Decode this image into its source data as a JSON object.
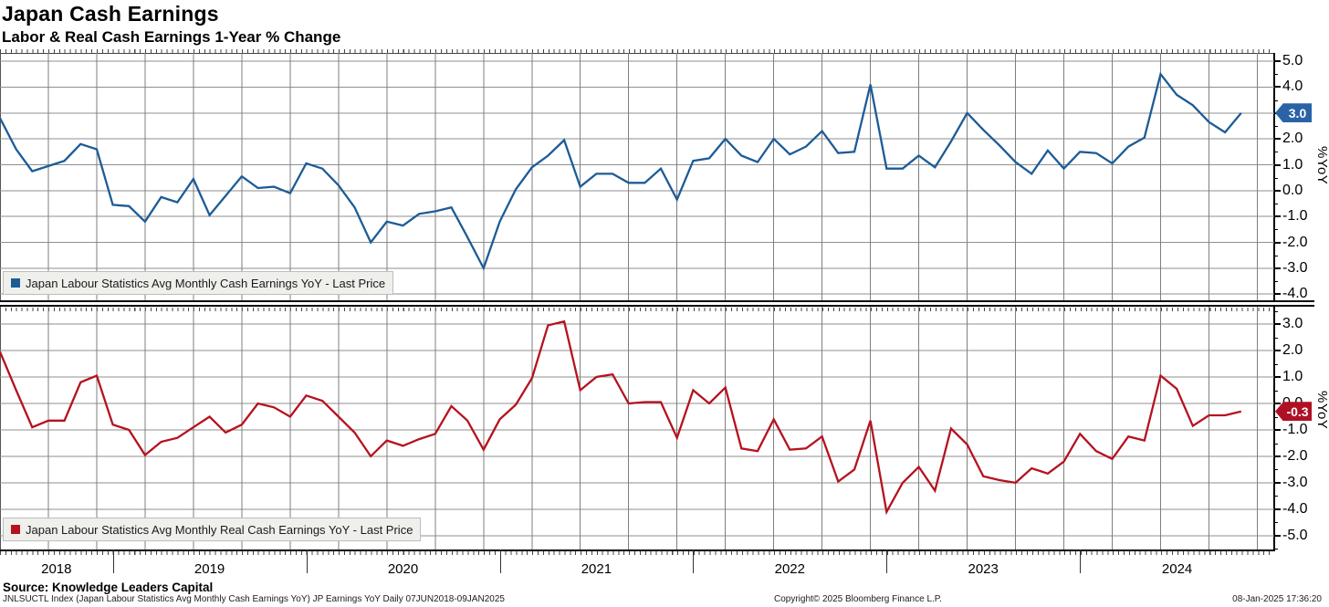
{
  "header": {
    "title": "Japan Cash Earnings",
    "subtitle": "Labor & Real Cash Earnings 1-Year % Change"
  },
  "chart_data": {
    "type": "line",
    "grid": true,
    "legend_position": "bottom-left-inside",
    "x_months": [
      "2018-06",
      "2018-07",
      "2018-08",
      "2018-09",
      "2018-10",
      "2018-11",
      "2018-12",
      "2019-01",
      "2019-02",
      "2019-03",
      "2019-04",
      "2019-05",
      "2019-06",
      "2019-07",
      "2019-08",
      "2019-09",
      "2019-10",
      "2019-11",
      "2019-12",
      "2020-01",
      "2020-02",
      "2020-03",
      "2020-04",
      "2020-05",
      "2020-06",
      "2020-07",
      "2020-08",
      "2020-09",
      "2020-10",
      "2020-11",
      "2020-12",
      "2021-01",
      "2021-02",
      "2021-03",
      "2021-04",
      "2021-05",
      "2021-06",
      "2021-07",
      "2021-08",
      "2021-09",
      "2021-10",
      "2021-11",
      "2021-12",
      "2022-01",
      "2022-02",
      "2022-03",
      "2022-04",
      "2022-05",
      "2022-06",
      "2022-07",
      "2022-08",
      "2022-09",
      "2022-10",
      "2022-11",
      "2022-12",
      "2023-01",
      "2023-02",
      "2023-03",
      "2023-04",
      "2023-05",
      "2023-06",
      "2023-07",
      "2023-08",
      "2023-09",
      "2023-10",
      "2023-11",
      "2023-12",
      "2024-01",
      "2024-02",
      "2024-03",
      "2024-04",
      "2024-05",
      "2024-06",
      "2024-07",
      "2024-08",
      "2024-09",
      "2024-10",
      "2024-11"
    ],
    "x_year_labels": [
      "2018",
      "2019",
      "2020",
      "2021",
      "2022",
      "2023",
      "2024"
    ],
    "x_range_note": "07JUN2018-09JAN2025",
    "panels": [
      {
        "name": "nominal-cash-earnings",
        "legend": "Japan Labour Statistics Avg Monthly Cash Earnings YoY - Last Price",
        "ylabel": "%YoY",
        "line_color": "#1d5b96",
        "badge_color": "#2a63a5",
        "last_label": "3.0",
        "yticks": [
          5.0,
          4.0,
          3.0,
          2.0,
          1.0,
          0.0,
          -1.0,
          -2.0,
          -3.0,
          -4.0
        ],
        "ylim": [
          -4.31,
          5.32
        ],
        "values": [
          2.8,
          1.6,
          0.75,
          0.95,
          1.15,
          1.8,
          1.6,
          -0.55,
          -0.6,
          -1.2,
          -0.25,
          -0.45,
          0.45,
          -0.95,
          -0.2,
          0.55,
          0.1,
          0.15,
          -0.1,
          1.05,
          0.85,
          0.2,
          -0.65,
          -2.0,
          -1.2,
          -1.35,
          -0.9,
          -0.8,
          -0.65,
          -1.8,
          -3.0,
          -1.2,
          0.05,
          0.9,
          1.35,
          1.95,
          0.15,
          0.65,
          0.65,
          0.3,
          0.3,
          0.85,
          -0.35,
          1.15,
          1.25,
          2.0,
          1.35,
          1.1,
          2.0,
          1.4,
          1.7,
          2.3,
          1.45,
          1.5,
          4.1,
          0.85,
          0.85,
          1.35,
          0.9,
          1.9,
          3.0,
          2.35,
          1.75,
          1.1,
          0.65,
          1.55,
          0.85,
          1.5,
          1.45,
          1.05,
          1.7,
          2.05,
          4.5,
          3.7,
          3.3,
          2.65,
          2.25,
          3.0
        ]
      },
      {
        "name": "real-cash-earnings",
        "legend": "Japan Labour Statistics Avg Monthly Real Cash Earnings YoY - Last Price",
        "ylabel": "%YoY",
        "line_color": "#b5121f",
        "badge_color": "#b01024",
        "last_label": "-0.3",
        "yticks": [
          3.0,
          2.0,
          1.0,
          0.0,
          -1.0,
          -2.0,
          -3.0,
          -4.0,
          -5.0
        ],
        "ylim": [
          -5.52,
          3.655
        ],
        "values": [
          1.95,
          0.5,
          -0.9,
          -0.65,
          -0.65,
          0.8,
          1.05,
          -0.8,
          -1.0,
          -1.95,
          -1.45,
          -1.3,
          -0.9,
          -0.5,
          -1.1,
          -0.8,
          0.0,
          -0.15,
          -0.5,
          0.3,
          0.1,
          -0.5,
          -1.1,
          -2.0,
          -1.4,
          -1.6,
          -1.35,
          -1.15,
          -0.1,
          -0.65,
          -1.75,
          -0.6,
          -0.05,
          0.95,
          2.95,
          3.1,
          0.5,
          1.0,
          1.1,
          0.0,
          0.05,
          0.05,
          -1.3,
          0.5,
          0.0,
          0.6,
          -1.7,
          -1.8,
          -0.6,
          -1.75,
          -1.7,
          -1.25,
          -2.95,
          -2.5,
          -0.65,
          -4.1,
          -3.0,
          -2.4,
          -3.3,
          -0.95,
          -1.55,
          -2.75,
          -2.9,
          -3.0,
          -2.45,
          -2.65,
          -2.2,
          -1.15,
          -1.8,
          -2.1,
          -1.25,
          -1.4,
          1.05,
          0.55,
          -0.85,
          -0.45,
          -0.45,
          -0.3
        ]
      }
    ]
  },
  "footer": {
    "source": "Source: Knowledge Leaders Capital",
    "ticker_note": "JNLSUCTL Index (Japan Labour Statistics Avg Monthly Cash Earnings YoY) JP Earnings YoY  Daily 07JUN2018-09JAN2025",
    "copyright": "Copyright© 2025 Bloomberg Finance L.P.",
    "timestamp": "08-Jan-2025 17:36:20"
  }
}
